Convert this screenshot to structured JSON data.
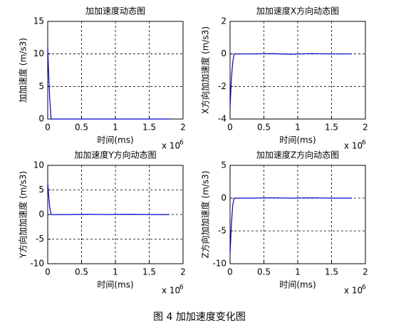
{
  "caption": "图 4  加加速度变化图",
  "chart_data": [
    {
      "type": "line",
      "title": "加加速度动态图",
      "xlabel": "时间(ms)",
      "ylabel": "加加速度 (m/s3)",
      "x_offset_text": "x 10",
      "x_offset_exponent": 6,
      "x": [
        0,
        0.01,
        0.03,
        0.05,
        0.3,
        0.6,
        0.9,
        1.2,
        1.5,
        1.8
      ],
      "values": [
        11,
        8,
        3,
        0,
        0,
        0,
        0,
        0,
        0,
        0
      ],
      "color": "#0000cc",
      "xlim": [
        0,
        2
      ],
      "xticks": [
        0,
        0.5,
        1,
        1.5,
        2
      ],
      "ylim": [
        0,
        15
      ],
      "yticks": [
        0,
        5,
        10,
        15
      ],
      "grid": true
    },
    {
      "type": "line",
      "title": "加加速度X方向动态图",
      "xlabel": "时间(ms)",
      "ylabel": "X方向加加速度 (m/s3)",
      "x_offset_text": "x 10",
      "x_offset_exponent": 6,
      "x": [
        0,
        0.02,
        0.04,
        0.06,
        0.3,
        0.6,
        0.9,
        1.2,
        1.5,
        1.8
      ],
      "values": [
        -3.3,
        -1.5,
        -0.5,
        0,
        0,
        0.02,
        -0.02,
        0.02,
        0,
        0
      ],
      "color": "#0000cc",
      "xlim": [
        0,
        2
      ],
      "xticks": [
        0,
        0.5,
        1,
        1.5,
        2
      ],
      "ylim": [
        -4,
        2
      ],
      "yticks": [
        -4,
        -2,
        0,
        2
      ],
      "grid": true
    },
    {
      "type": "line",
      "title": "加加速度Y方向动态图",
      "xlabel": "时间(ms)",
      "ylabel": "Y方向加加速度 (m/s3)",
      "x_offset_text": "x 10",
      "x_offset_exponent": 6,
      "x": [
        0,
        0.01,
        0.03,
        0.05,
        0.3,
        0.6,
        0.9,
        1.2,
        1.5,
        1.8
      ],
      "values": [
        6.5,
        4.5,
        1.5,
        0,
        0,
        0.05,
        0,
        0.05,
        0,
        0
      ],
      "color": "#0000cc",
      "xlim": [
        0,
        2
      ],
      "xticks": [
        0,
        0.5,
        1,
        1.5,
        2
      ],
      "ylim": [
        -10,
        10
      ],
      "yticks": [
        -10,
        -5,
        0,
        5,
        10
      ],
      "grid": true
    },
    {
      "type": "line",
      "title": "加加速度Z方向动态图",
      "xlabel": "时间(ms)",
      "ylabel": "Z方向加加速度 (m/s3)",
      "x_offset_text": "x 10",
      "x_offset_exponent": 6,
      "x": [
        0,
        0.02,
        0.04,
        0.06,
        0.3,
        0.6,
        0.9,
        1.2,
        1.5,
        1.8
      ],
      "values": [
        -8.5,
        -4,
        -1,
        0,
        0,
        0.05,
        0,
        0.05,
        0,
        0
      ],
      "color": "#0000cc",
      "xlim": [
        0,
        2
      ],
      "xticks": [
        0,
        0.5,
        1,
        1.5,
        2
      ],
      "ylim": [
        -10,
        5
      ],
      "yticks": [
        -10,
        -5,
        0,
        5
      ],
      "grid": true
    }
  ]
}
